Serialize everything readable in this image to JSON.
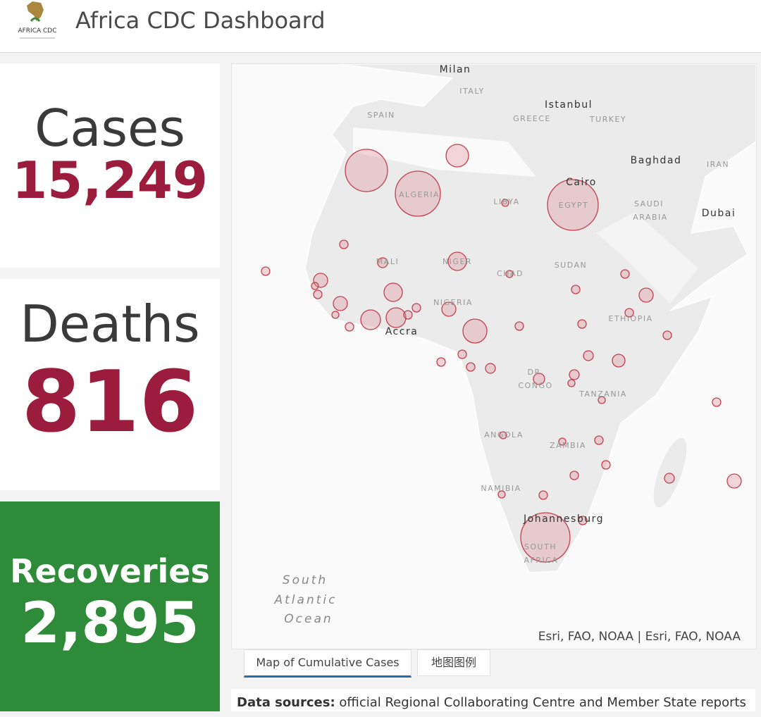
{
  "header": {
    "logo_text": "AFRICA CDC",
    "title": "Africa CDC Dashboard"
  },
  "cards": [
    {
      "label": "Cases",
      "value": "15,249"
    },
    {
      "label": "Deaths",
      "value": "816"
    },
    {
      "label": "Recoveries",
      "value": "2,895"
    }
  ],
  "map": {
    "labels": [
      "Milan",
      "ITALY",
      "SPAIN",
      "Istanbul",
      "GREECE",
      "TURKEY",
      "Baghdad",
      "IRAN",
      "Cairo",
      "LIBYA",
      "ALGERIA",
      "EGYPT",
      "SAUDI",
      "ARABIA",
      "Dubai",
      "MALI",
      "NIGER",
      "CHAD",
      "SUDAN",
      "NIGERIA",
      "ETHIOPIA",
      "Accra",
      "DR",
      "CONGO",
      "TANZANIA",
      "ANGOLA",
      "ZAMBIA",
      "NAMIBIA",
      "Johannesburg",
      "SOUTH",
      "AFRICA"
    ],
    "ocean": [
      "South",
      "Atlantic",
      "Ocean"
    ],
    "attribution": "Esri, FAO, NOAA | Esri, FAO, NOAA"
  },
  "tabs": [
    "Map of Cumulative Cases",
    "地图图例"
  ],
  "footer": {
    "label": "Data sources:",
    "text": "official Regional Collaborating Centre and Member State reports"
  }
}
